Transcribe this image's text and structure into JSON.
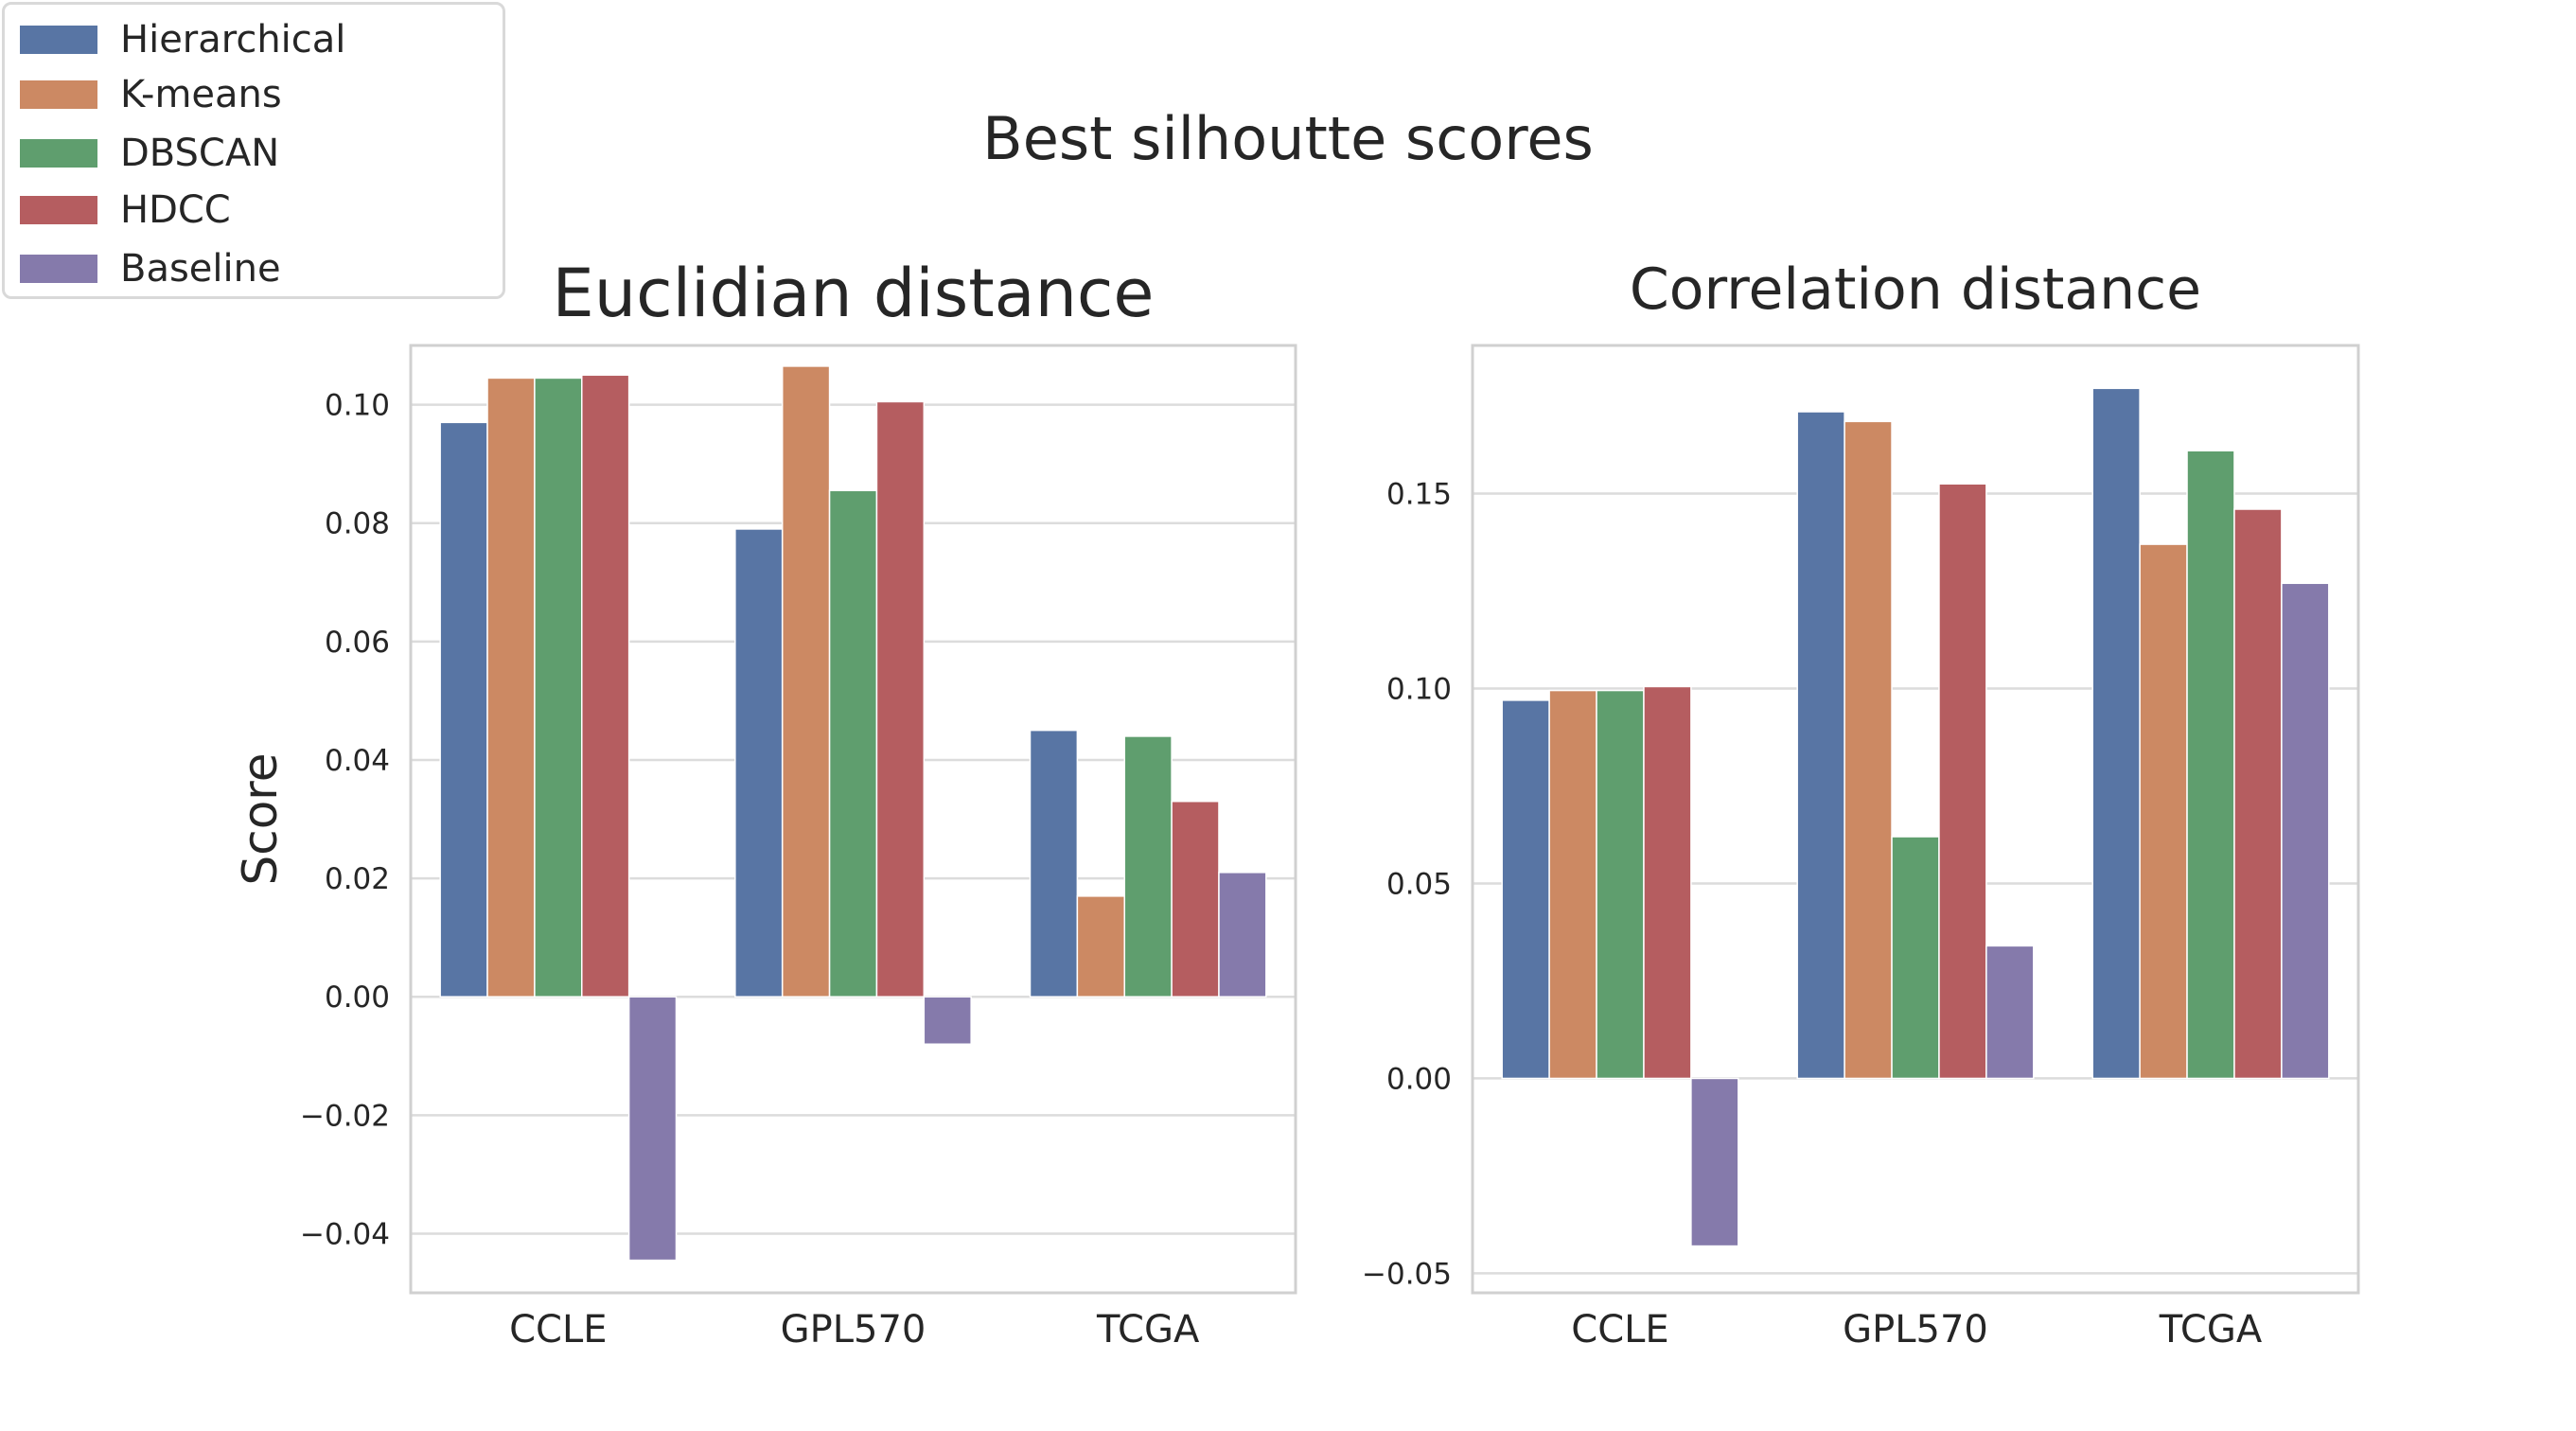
{
  "figure": {
    "suptitle": "Best silhoutte scores"
  },
  "legend": {
    "items": [
      {
        "label": "Hierarchical",
        "color": "#5875a4"
      },
      {
        "label": "K-means",
        "color": "#cc8963"
      },
      {
        "label": "DBSCAN",
        "color": "#5f9e6e"
      },
      {
        "label": "HDCC",
        "color": "#b55d60"
      },
      {
        "label": "Baseline",
        "color": "#857aab"
      }
    ]
  },
  "chart_data": [
    {
      "type": "bar",
      "title": "Euclidian distance",
      "xlabel": "",
      "ylabel": "Score",
      "categories": [
        "CCLE",
        "GPL570",
        "TCGA"
      ],
      "ylim": [
        -0.05,
        0.11
      ],
      "yticks": [
        -0.04,
        -0.02,
        0.0,
        0.02,
        0.04,
        0.06,
        0.08,
        0.1
      ],
      "ytick_labels": [
        "−0.04",
        "−0.02",
        "0.00",
        "0.02",
        "0.04",
        "0.06",
        "0.08",
        "0.10"
      ],
      "grid": true,
      "series": [
        {
          "name": "Hierarchical",
          "values": [
            0.097,
            0.079,
            0.045
          ]
        },
        {
          "name": "K-means",
          "values": [
            0.1045,
            0.1065,
            0.017
          ]
        },
        {
          "name": "DBSCAN",
          "values": [
            0.1045,
            0.0855,
            0.044
          ]
        },
        {
          "name": "HDCC",
          "values": [
            0.105,
            0.1005,
            0.033
          ]
        },
        {
          "name": "Baseline",
          "values": [
            -0.0445,
            -0.008,
            0.021
          ]
        }
      ]
    },
    {
      "type": "bar",
      "title": "Correlation distance",
      "xlabel": "",
      "ylabel": "",
      "categories": [
        "CCLE",
        "GPL570",
        "TCGA"
      ],
      "ylim": [
        -0.055,
        0.188
      ],
      "yticks": [
        -0.05,
        0.0,
        0.05,
        0.1,
        0.15
      ],
      "ytick_labels": [
        "−0.05",
        "0.00",
        "0.05",
        "0.10",
        "0.15"
      ],
      "grid": true,
      "series": [
        {
          "name": "Hierarchical",
          "values": [
            0.097,
            0.171,
            0.177
          ]
        },
        {
          "name": "K-means",
          "values": [
            0.0995,
            0.1685,
            0.137
          ]
        },
        {
          "name": "DBSCAN",
          "values": [
            0.0995,
            0.062,
            0.161
          ]
        },
        {
          "name": "HDCC",
          "values": [
            0.1005,
            0.1525,
            0.146
          ]
        },
        {
          "name": "Baseline",
          "values": [
            -0.043,
            0.034,
            0.127
          ]
        }
      ]
    }
  ]
}
